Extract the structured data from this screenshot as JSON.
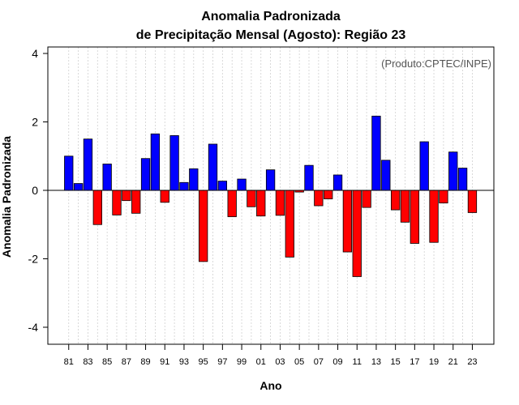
{
  "chart_data": {
    "type": "bar",
    "title_line1": "Anomalia Padronizada",
    "title_line2": "de Precipitação Mensal (Agosto): Região 23",
    "xlabel": "Ano",
    "ylabel": "Anomalia Padronizada",
    "credit": "(Produto:CPTEC/INPE)",
    "ylim": [
      -4.5,
      4.0
    ],
    "yticks": [
      -4,
      -2,
      0,
      2,
      4
    ],
    "positive_color": "#0000ff",
    "negative_color": "#ff0000",
    "categories": [
      "81",
      "82",
      "83",
      "84",
      "85",
      "86",
      "87",
      "88",
      "89",
      "90",
      "91",
      "92",
      "93",
      "94",
      "95",
      "96",
      "97",
      "98",
      "99",
      "00",
      "01",
      "02",
      "03",
      "04",
      "05",
      "06",
      "07",
      "08",
      "09",
      "10",
      "11",
      "12",
      "13",
      "14",
      "15",
      "16",
      "17",
      "18",
      "19",
      "20",
      "21",
      "22",
      "23"
    ],
    "tick_labels": [
      "81",
      "83",
      "85",
      "87",
      "89",
      "91",
      "93",
      "95",
      "97",
      "99",
      "01",
      "03",
      "05",
      "07",
      "09",
      "11",
      "13",
      "15",
      "17",
      "19",
      "21",
      "23"
    ],
    "values": [
      1.0,
      0.2,
      1.5,
      -1.0,
      0.77,
      -0.72,
      -0.3,
      -0.67,
      0.93,
      1.65,
      -0.35,
      1.6,
      0.23,
      0.63,
      -2.08,
      1.35,
      0.27,
      -0.77,
      0.33,
      -0.48,
      -0.75,
      0.6,
      -0.73,
      -1.95,
      -0.05,
      0.73,
      -0.45,
      -0.25,
      0.45,
      -1.8,
      -2.52,
      -0.5,
      2.17,
      0.88,
      -0.57,
      -0.93,
      -1.55,
      1.42,
      -1.52,
      -0.37,
      1.12,
      0.65,
      -0.65
    ]
  }
}
